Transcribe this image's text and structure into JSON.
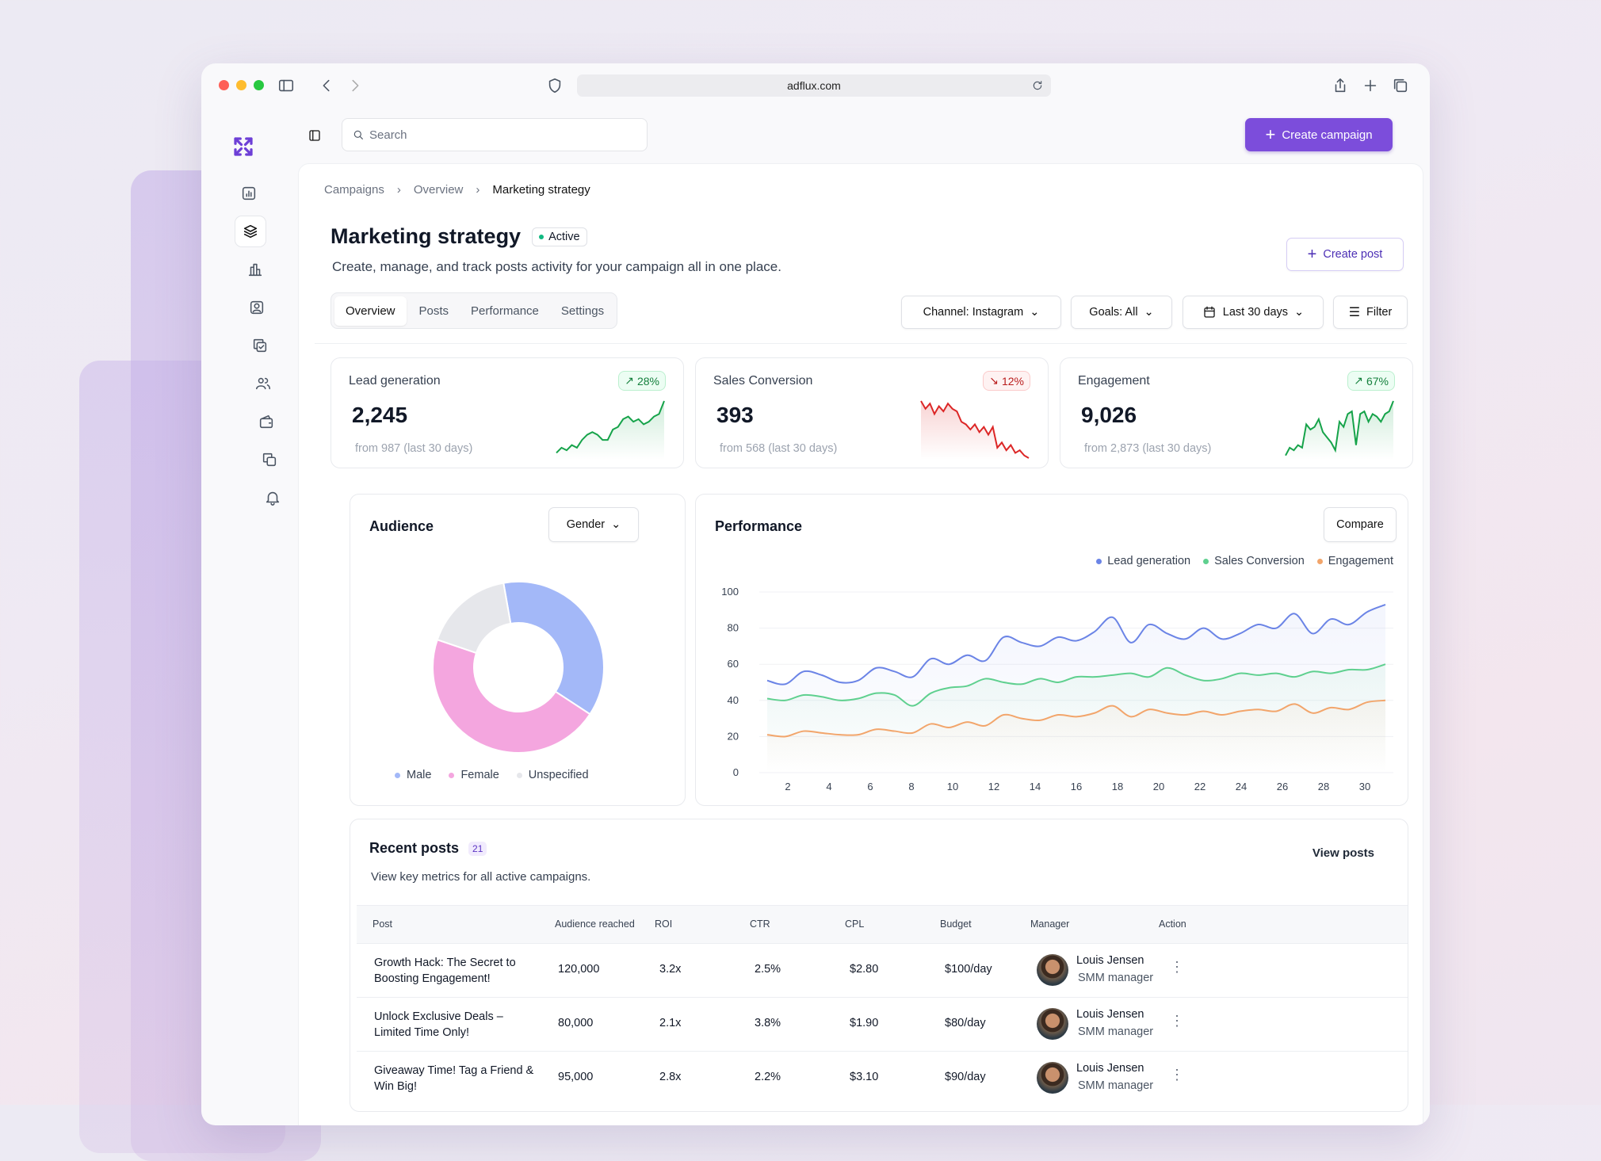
{
  "browser": {
    "url": "adflux.com"
  },
  "topbar": {
    "search_placeholder": "Search",
    "create_campaign": "Create campaign"
  },
  "breadcrumb": [
    "Campaigns",
    "Overview",
    "Marketing strategy"
  ],
  "page": {
    "title": "Marketing strategy",
    "status": "Active",
    "subtitle": "Create, manage, and track posts activity for your campaign all in one place.",
    "create_post": "Create post"
  },
  "tabs": [
    "Overview",
    "Posts",
    "Performance",
    "Settings"
  ],
  "filters": {
    "channel": "Channel: Instagram",
    "goals": "Goals: All",
    "date": "Last 30 days",
    "filter": "Filter"
  },
  "stats": [
    {
      "label": "Lead generation",
      "value": "2,245",
      "change": "28%",
      "trend": "up",
      "from": "from 987 (last 30 days)",
      "color": "#16a34a",
      "spark": [
        2,
        4,
        3,
        5,
        4,
        7,
        9,
        10,
        9,
        7,
        7,
        11,
        12,
        15,
        16,
        14,
        15,
        13,
        14,
        16,
        17,
        22
      ]
    },
    {
      "label": "Sales Conversion",
      "value": "393",
      "change": "12%",
      "trend": "down",
      "from": "from 568 (last 30 days)",
      "color": "#dc2626",
      "spark": [
        22,
        19,
        21,
        17,
        20,
        18,
        21,
        19,
        18,
        14,
        13,
        11,
        13,
        10,
        12,
        9,
        12,
        4,
        6,
        3,
        5,
        2,
        3,
        1,
        0
      ]
    },
    {
      "label": "Engagement",
      "value": "9,026",
      "change": "67%",
      "trend": "up",
      "from": "from 2,873 (last 30 days)",
      "color": "#16a34a",
      "spark": [
        1,
        4,
        3,
        5,
        4,
        13,
        11,
        12,
        15,
        10,
        8,
        6,
        3,
        14,
        12,
        17,
        18,
        5,
        17,
        18,
        14,
        17,
        16,
        14,
        17,
        18,
        22
      ]
    }
  ],
  "audience": {
    "title": "Audience",
    "dropdown": "Gender",
    "legend": [
      {
        "label": "Male",
        "value": 37,
        "color": "#a3b8f8"
      },
      {
        "label": "Female",
        "value": 46,
        "color": "#f4a6df"
      },
      {
        "label": "Unspecified",
        "value": 17,
        "color": "#e6e7eb"
      }
    ]
  },
  "performance": {
    "title": "Performance",
    "compare": "Compare"
  },
  "chart_data": {
    "type": "line",
    "title": "Performance",
    "x_range": [
      1,
      31
    ],
    "x_ticks": [
      2,
      4,
      6,
      8,
      10,
      12,
      14,
      16,
      18,
      20,
      22,
      24,
      26,
      28,
      30
    ],
    "y_ticks": [
      0,
      20,
      40,
      60,
      80,
      100
    ],
    "ylim": [
      0,
      100
    ],
    "legend_position": "top-right",
    "series": [
      {
        "name": "Lead generation",
        "color": "#6b84e6",
        "values": [
          51,
          49,
          56,
          54,
          50,
          51,
          58,
          56,
          53,
          63,
          60,
          65,
          62,
          75,
          72,
          70,
          75,
          73,
          78,
          86,
          72,
          82,
          77,
          74,
          80,
          74,
          77,
          82,
          80,
          88,
          77,
          85,
          82,
          89,
          93
        ]
      },
      {
        "name": "Sales Conversion",
        "color": "#5fd08f",
        "values": [
          41,
          40,
          43,
          42,
          40,
          41,
          44,
          43,
          37,
          44,
          47,
          48,
          52,
          50,
          49,
          52,
          50,
          53,
          53,
          54,
          55,
          53,
          58,
          54,
          51,
          52,
          55,
          54,
          55,
          53,
          56,
          55,
          57,
          57,
          60
        ]
      },
      {
        "name": "Engagement",
        "color": "#f2a56b",
        "values": [
          21,
          20,
          23,
          22,
          21,
          21,
          24,
          23,
          22,
          27,
          25,
          28,
          26,
          32,
          30,
          29,
          32,
          31,
          33,
          37,
          31,
          35,
          33,
          32,
          34,
          32,
          34,
          35,
          34,
          38,
          33,
          36,
          35,
          39,
          40
        ]
      }
    ]
  },
  "posts": {
    "title": "Recent posts",
    "count": "21",
    "subtitle": "View key metrics for all active campaigns.",
    "view_all": "View posts",
    "columns": [
      "Post",
      "Audience reached",
      "ROI",
      "CTR",
      "CPL",
      "Budget",
      "Manager",
      "Action"
    ],
    "rows": [
      {
        "post": [
          "Growth Hack: The Secret to",
          "Boosting Engagement!"
        ],
        "audience": "120,000",
        "roi": "3.2x",
        "ctr": "2.5%",
        "cpl": "$2.80",
        "budget": "$100/day",
        "manager": "Louis Jensen",
        "role": "SMM manager"
      },
      {
        "post": [
          "Unlock Exclusive Deals –",
          "Limited Time Only!"
        ],
        "audience": "80,000",
        "roi": "2.1x",
        "ctr": "3.8%",
        "cpl": "$1.90",
        "budget": "$80/day",
        "manager": "Louis Jensen",
        "role": "SMM manager"
      },
      {
        "post": [
          "Giveaway Time! Tag a Friend &",
          "Win Big!"
        ],
        "audience": "95,000",
        "roi": "2.8x",
        "ctr": "2.2%",
        "cpl": "$3.10",
        "budget": "$90/day",
        "manager": "Louis Jensen",
        "role": "SMM manager"
      }
    ]
  }
}
